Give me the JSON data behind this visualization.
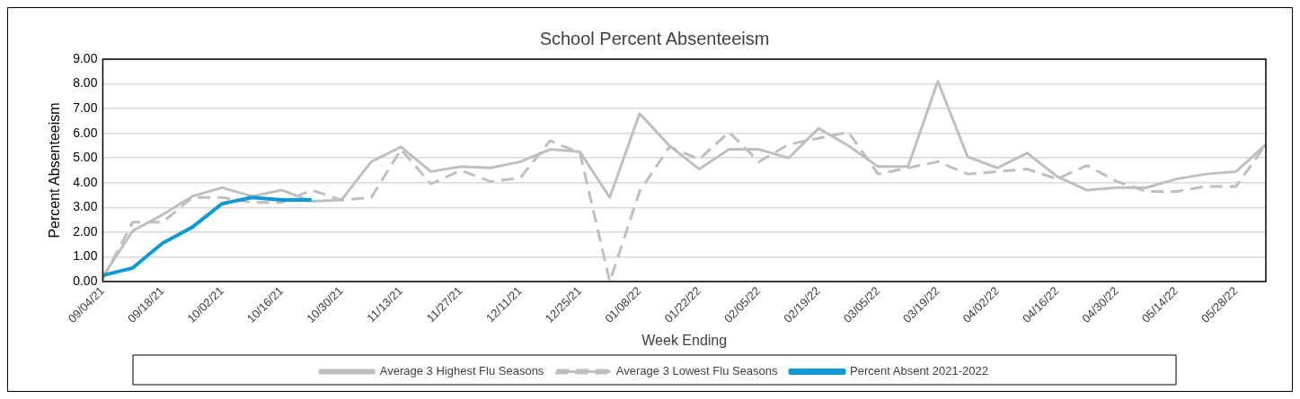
{
  "chart_data": {
    "type": "line",
    "title": "School Percent Absenteeism",
    "xlabel": "Week Ending",
    "ylabel": "Percent Absenteeism",
    "categories": [
      "09/04/21",
      null,
      "09/18/21",
      null,
      "10/02/21",
      null,
      "10/16/21",
      null,
      "10/30/21",
      null,
      "11/13/21",
      null,
      "11/27/21",
      null,
      "12/11/21",
      null,
      "12/25/21",
      null,
      "01/08/22",
      null,
      "01/22/22",
      null,
      "02/05/22",
      null,
      "02/19/22",
      null,
      "03/05/22",
      null,
      "03/19/22",
      null,
      "04/02/22",
      null,
      "04/16/22",
      null,
      "04/30/22",
      null,
      "05/14/22",
      null,
      "05/28/22",
      null
    ],
    "series": [
      {
        "name": "Average 3 Highest Flu Seasons",
        "color": "#bfbfbf",
        "line_style": "solid",
        "values": [
          0.2,
          2.05,
          2.7,
          3.45,
          3.8,
          3.45,
          3.7,
          3.25,
          3.3,
          4.85,
          5.45,
          4.45,
          4.65,
          4.6,
          4.85,
          5.35,
          5.25,
          3.4,
          6.8,
          5.5,
          4.55,
          5.35,
          5.35,
          5.0,
          6.2,
          5.5,
          4.65,
          4.65,
          8.1,
          5.05,
          4.6,
          5.2,
          4.25,
          3.7,
          3.8,
          3.8,
          4.15,
          4.35,
          4.45,
          5.55
        ]
      },
      {
        "name": "Average 3 Lowest Flu Seasons",
        "color": "#bfbfbf",
        "line_style": "dashed",
        "values": [
          0.1,
          2.4,
          2.4,
          3.4,
          3.4,
          3.2,
          3.2,
          3.7,
          3.3,
          3.4,
          5.35,
          3.95,
          4.5,
          4.05,
          4.2,
          5.7,
          5.2,
          0,
          3.65,
          5.45,
          4.95,
          6.05,
          4.85,
          5.55,
          5.8,
          6.05,
          4.35,
          4.6,
          4.85,
          4.35,
          4.45,
          4.55,
          4.15,
          4.7,
          4.05,
          3.65,
          3.65,
          3.85,
          3.85,
          5.55
        ]
      },
      {
        "name": "Percent Absent 2021-2022",
        "color": "#0e9ad7",
        "line_style": "solid",
        "values": [
          0.25,
          0.55,
          1.55,
          2.2,
          3.15,
          3.4,
          3.3,
          3.3,
          null,
          null,
          null,
          null,
          null,
          null,
          null,
          null,
          null,
          null,
          null,
          null,
          null,
          null,
          null,
          null,
          null,
          null,
          null,
          null,
          null,
          null,
          null,
          null,
          null,
          null,
          null,
          null,
          null,
          null,
          null,
          null
        ]
      }
    ],
    "ylim": [
      0,
      9
    ],
    "yticks": [
      {
        "value": 0,
        "label": "0.00"
      },
      {
        "value": 1,
        "label": "1.00"
      },
      {
        "value": 2,
        "label": "2.00"
      },
      {
        "value": 3,
        "label": "3.00"
      },
      {
        "value": 4,
        "label": "4.00"
      },
      {
        "value": 5,
        "label": "5.00"
      },
      {
        "value": 6,
        "label": "6.00"
      },
      {
        "value": 7,
        "label": "7.00"
      },
      {
        "value": 8,
        "label": "8.00"
      },
      {
        "value": 9,
        "label": "9.00"
      }
    ],
    "grid": "y",
    "legend": "bottom",
    "marker": "none"
  }
}
